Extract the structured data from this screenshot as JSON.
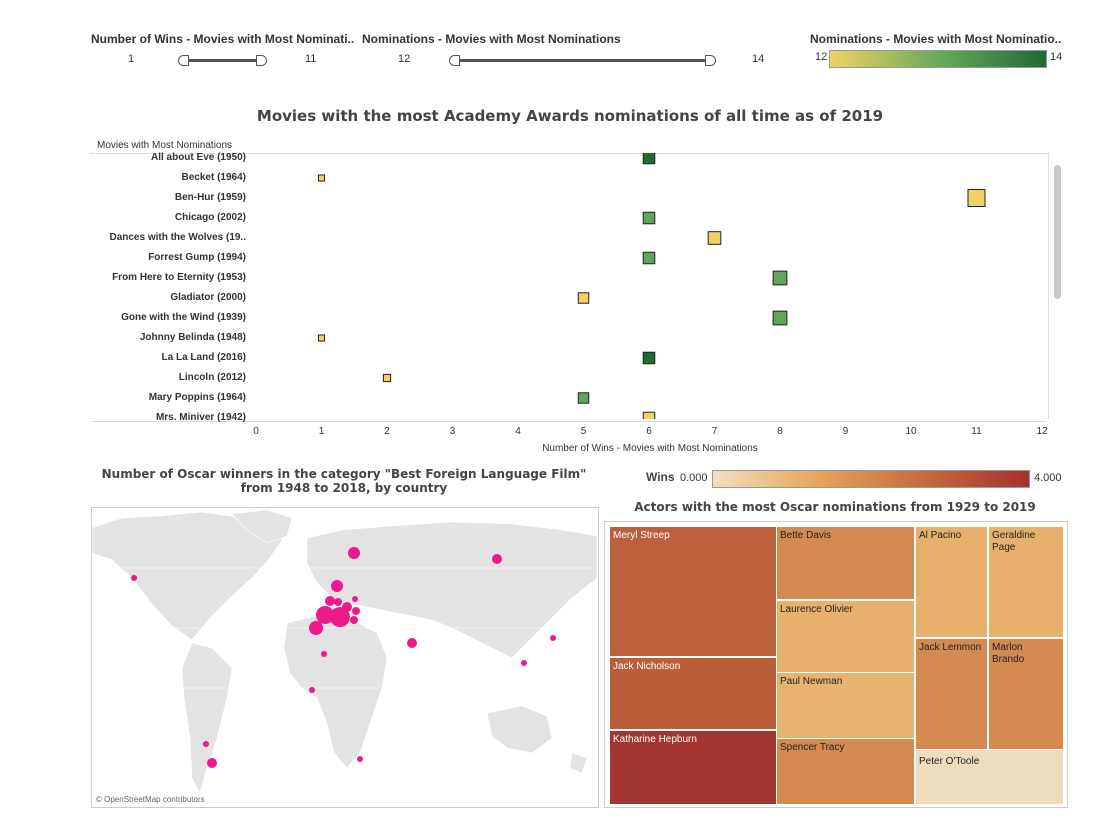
{
  "filters": {
    "wins": {
      "title": "Number of Wins - Movies with Most Nominati..",
      "min": "1",
      "max": "11"
    },
    "nominations": {
      "title": "Nominations - Movies with Most Nominations",
      "min": "12",
      "max": "14"
    },
    "color_legend": {
      "title": "Nominations - Movies with Most Nominatio..",
      "min": "12",
      "max": "14",
      "colors": [
        "#f0d264",
        "#1e6b36"
      ]
    }
  },
  "scatter": {
    "title": "Movies with the most Academy Awards nominations of all time as of 2019",
    "row_header": "Movies with Most Nominations",
    "xlabel": "Number of Wins - Movies with Most Nominations",
    "x_ticks": [
      "0",
      "1",
      "2",
      "3",
      "4",
      "5",
      "6",
      "7",
      "8",
      "9",
      "10",
      "11",
      "12"
    ]
  },
  "chart_data": {
    "type": "scatter",
    "xlabel": "Number of Wins - Movies with Most Nominations",
    "xlim": [
      0,
      12
    ],
    "points": [
      {
        "movie": "All about Eve (1950)",
        "wins": 6,
        "nominations": 14
      },
      {
        "movie": "Becket (1964)",
        "wins": 1,
        "nominations": 12
      },
      {
        "movie": "Ben-Hur (1959)",
        "wins": 11,
        "nominations": 12
      },
      {
        "movie": "Chicago (2002)",
        "wins": 6,
        "nominations": 13
      },
      {
        "movie": "Dances with the Wolves (19..",
        "wins": 7,
        "nominations": 12
      },
      {
        "movie": "Forrest Gump (1994)",
        "wins": 6,
        "nominations": 13
      },
      {
        "movie": "From Here to Eternity (1953)",
        "wins": 8,
        "nominations": 13
      },
      {
        "movie": "Gladiator (2000)",
        "wins": 5,
        "nominations": 12
      },
      {
        "movie": "Gone with the Wind (1939)",
        "wins": 8,
        "nominations": 13
      },
      {
        "movie": "Johnny Belinda (1948)",
        "wins": 1,
        "nominations": 12
      },
      {
        "movie": "La La Land (2016)",
        "wins": 6,
        "nominations": 14
      },
      {
        "movie": "Lincoln (2012)",
        "wins": 2,
        "nominations": 12
      },
      {
        "movie": "Mary Poppins (1964)",
        "wins": 5,
        "nominations": 13
      },
      {
        "movie": "Mrs. Miniver (1942)",
        "wins": 6,
        "nominations": 12
      }
    ]
  },
  "map": {
    "title": "Number of Oscar winners in the category \"Best Foreign Language Film\" from 1948 to 2018, by country",
    "attribution": "© OpenStreetMap contributors",
    "marker_color": "#ee1a8c"
  },
  "treemap": {
    "legend_label": "Wins",
    "legend_min": "0.000",
    "legend_max": "4.000",
    "title": "Actors with the most Oscar nominations from 1929 to 2019",
    "actors": [
      "Meryl Streep",
      "Jack Nicholson",
      "Katharine Hepburn",
      "Bette Davis",
      "Laurence Olivier",
      "Paul Newman",
      "Spencer Tracy",
      "Al Pacino",
      "Geraldine Page",
      "Jack Lemmon",
      "Marlon Brando",
      "Peter O'Toole"
    ]
  }
}
